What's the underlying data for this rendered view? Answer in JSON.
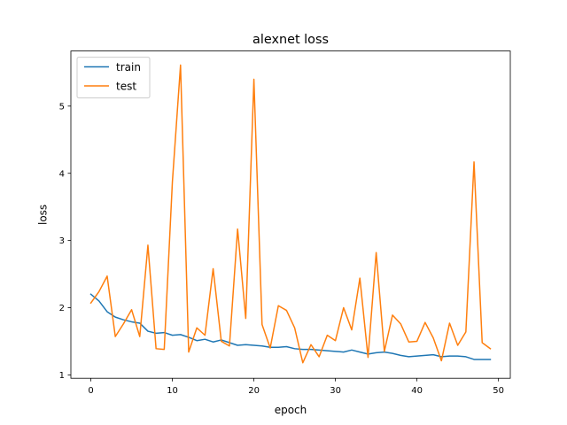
{
  "chart_data": {
    "type": "line",
    "title": "alexnet loss",
    "xlabel": "epoch",
    "ylabel": "loss",
    "xlim": [
      -2.45,
      51.45
    ],
    "ylim": [
      0.95,
      5.82
    ],
    "xticks": [
      0,
      10,
      20,
      30,
      40,
      50
    ],
    "yticks": [
      1,
      2,
      3,
      4,
      5
    ],
    "grid": false,
    "legend_position": "upper-left",
    "x": [
      0,
      1,
      2,
      3,
      4,
      5,
      6,
      7,
      8,
      9,
      10,
      11,
      12,
      13,
      14,
      15,
      16,
      17,
      18,
      19,
      20,
      21,
      22,
      23,
      24,
      25,
      26,
      27,
      28,
      29,
      30,
      31,
      32,
      33,
      34,
      35,
      36,
      37,
      38,
      39,
      40,
      41,
      42,
      43,
      44,
      45,
      46,
      47,
      48,
      49
    ],
    "series": [
      {
        "name": "train",
        "color": "#1f77b4",
        "values": [
          2.2,
          2.1,
          1.94,
          1.86,
          1.82,
          1.79,
          1.77,
          1.65,
          1.62,
          1.63,
          1.59,
          1.6,
          1.56,
          1.51,
          1.53,
          1.49,
          1.52,
          1.48,
          1.44,
          1.45,
          1.44,
          1.43,
          1.41,
          1.41,
          1.42,
          1.39,
          1.38,
          1.38,
          1.37,
          1.36,
          1.35,
          1.34,
          1.37,
          1.34,
          1.31,
          1.33,
          1.34,
          1.32,
          1.29,
          1.27,
          1.28,
          1.29,
          1.3,
          1.27,
          1.28,
          1.28,
          1.27,
          1.23,
          1.23,
          1.23
        ]
      },
      {
        "name": "test",
        "color": "#ff7f0e",
        "values": [
          2.07,
          2.24,
          2.47,
          1.57,
          1.76,
          1.97,
          1.57,
          2.93,
          1.39,
          1.38,
          3.87,
          5.61,
          1.34,
          1.7,
          1.59,
          2.58,
          1.5,
          1.43,
          3.17,
          1.84,
          5.4,
          1.75,
          1.4,
          2.03,
          1.96,
          1.7,
          1.18,
          1.45,
          1.27,
          1.59,
          1.51,
          2.0,
          1.67,
          2.44,
          1.26,
          2.82,
          1.35,
          1.89,
          1.76,
          1.49,
          1.5,
          1.78,
          1.55,
          1.21,
          1.77,
          1.44,
          1.64,
          4.17,
          1.48,
          1.39
        ]
      }
    ]
  }
}
